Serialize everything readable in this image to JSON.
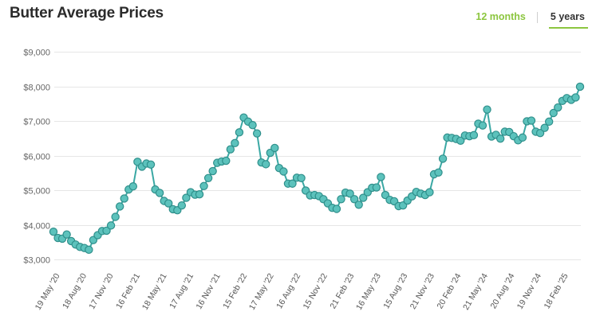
{
  "header": {
    "title": "Butter Average Prices",
    "range_12": "12 months",
    "range_5y": "5 years"
  },
  "colors": {
    "accent": "#8cc63f",
    "series": "#3aa8a4",
    "point_fill": "#5cc2bc",
    "point_stroke": "#2f8f8b"
  },
  "chart_data": {
    "type": "line",
    "title": "Butter Average Prices",
    "xlabel": "",
    "ylabel": "",
    "ylim": [
      3000,
      9000
    ],
    "yticks": [
      3000,
      4000,
      5000,
      6000,
      7000,
      8000,
      9000
    ],
    "ytick_labels": [
      "$3,000",
      "$4,000",
      "$5,000",
      "$6,000",
      "$7,000",
      "$8,000",
      "$9,000"
    ],
    "xtick_labels": [
      "19 May '20",
      "18 Aug '20",
      "17 Nov '20",
      "16 Feb '21",
      "18 May '21",
      "17 Aug '21",
      "16 Nov '21",
      "15 Feb '22",
      "17 May '22",
      "16 Aug '22",
      "15 Nov '22",
      "21 Feb '23",
      "16 May '23",
      "15 Aug '23",
      "21 Nov '23",
      "20 Feb '24",
      "21 May '24",
      "20 Aug '24",
      "19 Nov '24",
      "18 Feb '25"
    ],
    "series": [
      {
        "name": "Butter average price (USD/t)",
        "values": [
          3800,
          3620,
          3600,
          3720,
          3530,
          3430,
          3360,
          3330,
          3280,
          3560,
          3700,
          3820,
          3830,
          3980,
          4230,
          4530,
          4760,
          5020,
          5110,
          5820,
          5680,
          5770,
          5740,
          5020,
          4920,
          4690,
          4620,
          4450,
          4420,
          4560,
          4780,
          4940,
          4870,
          4880,
          5120,
          5350,
          5550,
          5790,
          5830,
          5850,
          6180,
          6360,
          6670,
          7100,
          6980,
          6880,
          6640,
          5800,
          5750,
          6080,
          6220,
          5640,
          5540,
          5190,
          5190,
          5360,
          5350,
          4990,
          4850,
          4860,
          4830,
          4740,
          4620,
          4490,
          4460,
          4740,
          4930,
          4900,
          4740,
          4580,
          4780,
          4940,
          5070,
          5080,
          5380,
          4860,
          4720,
          4680,
          4540,
          4560,
          4700,
          4820,
          4950,
          4900,
          4860,
          4940,
          5460,
          5510,
          5910,
          6520,
          6510,
          6480,
          6430,
          6580,
          6560,
          6590,
          6920,
          6870,
          7330,
          6550,
          6600,
          6490,
          6690,
          6680,
          6560,
          6440,
          6520,
          6990,
          7010,
          6690,
          6650,
          6800,
          6980,
          7230,
          7390,
          7580,
          7660,
          7610,
          7680,
          7990
        ]
      }
    ]
  }
}
